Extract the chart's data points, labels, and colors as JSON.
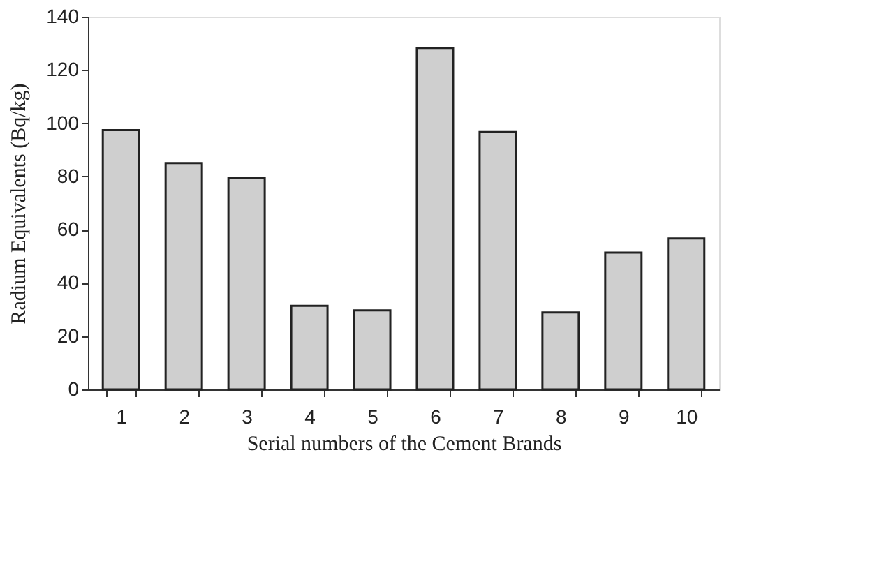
{
  "chart_data": {
    "type": "bar",
    "xlabel": "Serial numbers of the Cement Brands",
    "ylabel": "Radium Equivalents (Bq/kg)",
    "categories": [
      "1",
      "2",
      "3",
      "4",
      "5",
      "6",
      "7",
      "8",
      "9",
      "10"
    ],
    "values": [
      97.4,
      85,
      79.6,
      31.4,
      29.7,
      128.3,
      96.7,
      28.9,
      51.4,
      56.7
    ],
    "color": "#cfcfcf",
    "ylim": [
      0,
      140
    ],
    "yticks": [
      0,
      20,
      40,
      60,
      80,
      100,
      120,
      140
    ],
    "grid": false
  }
}
